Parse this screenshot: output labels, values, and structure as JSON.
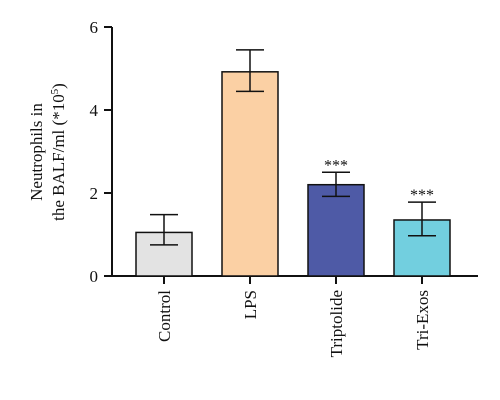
{
  "chart_data": {
    "type": "bar",
    "categories": [
      "Control",
      "LPS",
      "Triptolide",
      "Tri-Exos"
    ],
    "values": [
      1.05,
      4.92,
      2.2,
      1.35
    ],
    "error_upper": [
      1.48,
      5.45,
      2.5,
      1.78
    ],
    "error_lower": [
      0.75,
      4.45,
      1.92,
      0.97
    ],
    "significance": [
      "",
      "",
      "***",
      "***"
    ],
    "colors": [
      "#e3e3e3",
      "#fbd0a4",
      "#4e5aa6",
      "#72cfdf"
    ],
    "ylabel_line1": "Neutrophils in",
    "ylabel_line2_prefix": "the BALF/ml (*10",
    "ylabel_line2_sup": "5",
    "ylabel_line2_suffix": ")",
    "ylim": [
      0,
      6
    ],
    "yticks": [
      0,
      2,
      4,
      6
    ],
    "grid": false,
    "title": "",
    "xlabel": ""
  }
}
